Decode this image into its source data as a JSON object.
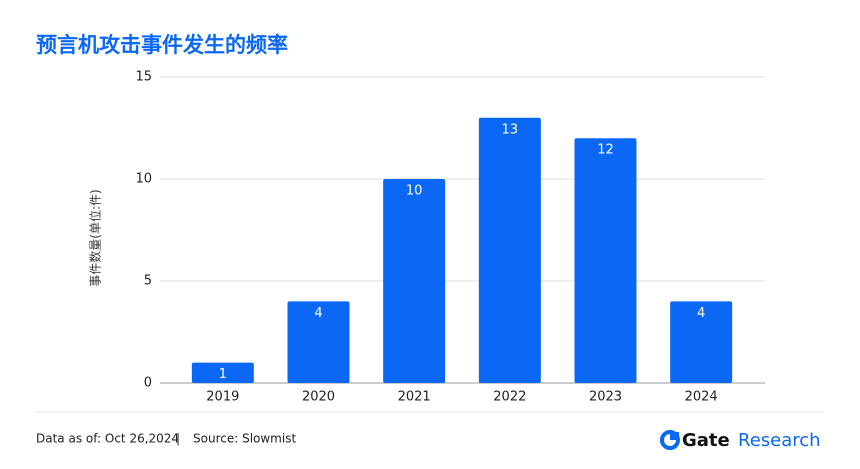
{
  "chart_data": {
    "type": "bar",
    "title": "预言机攻击事件发生的频率",
    "y_label": "事件数量(单位:件)",
    "categories": [
      "2019",
      "2020",
      "2021",
      "2022",
      "2023",
      "2024"
    ],
    "values": [
      1,
      4,
      10,
      13,
      12,
      4
    ],
    "color": "#0a68f4",
    "ylim": [
      0,
      15
    ],
    "yticks": [
      0,
      5,
      10,
      15
    ],
    "grid": true
  },
  "footer": {
    "date": "Data as of: Oct 26,2024",
    "separator": "|",
    "source": "Source: Slowmist",
    "brand": "Gate",
    "brand_suffix": "Research"
  }
}
